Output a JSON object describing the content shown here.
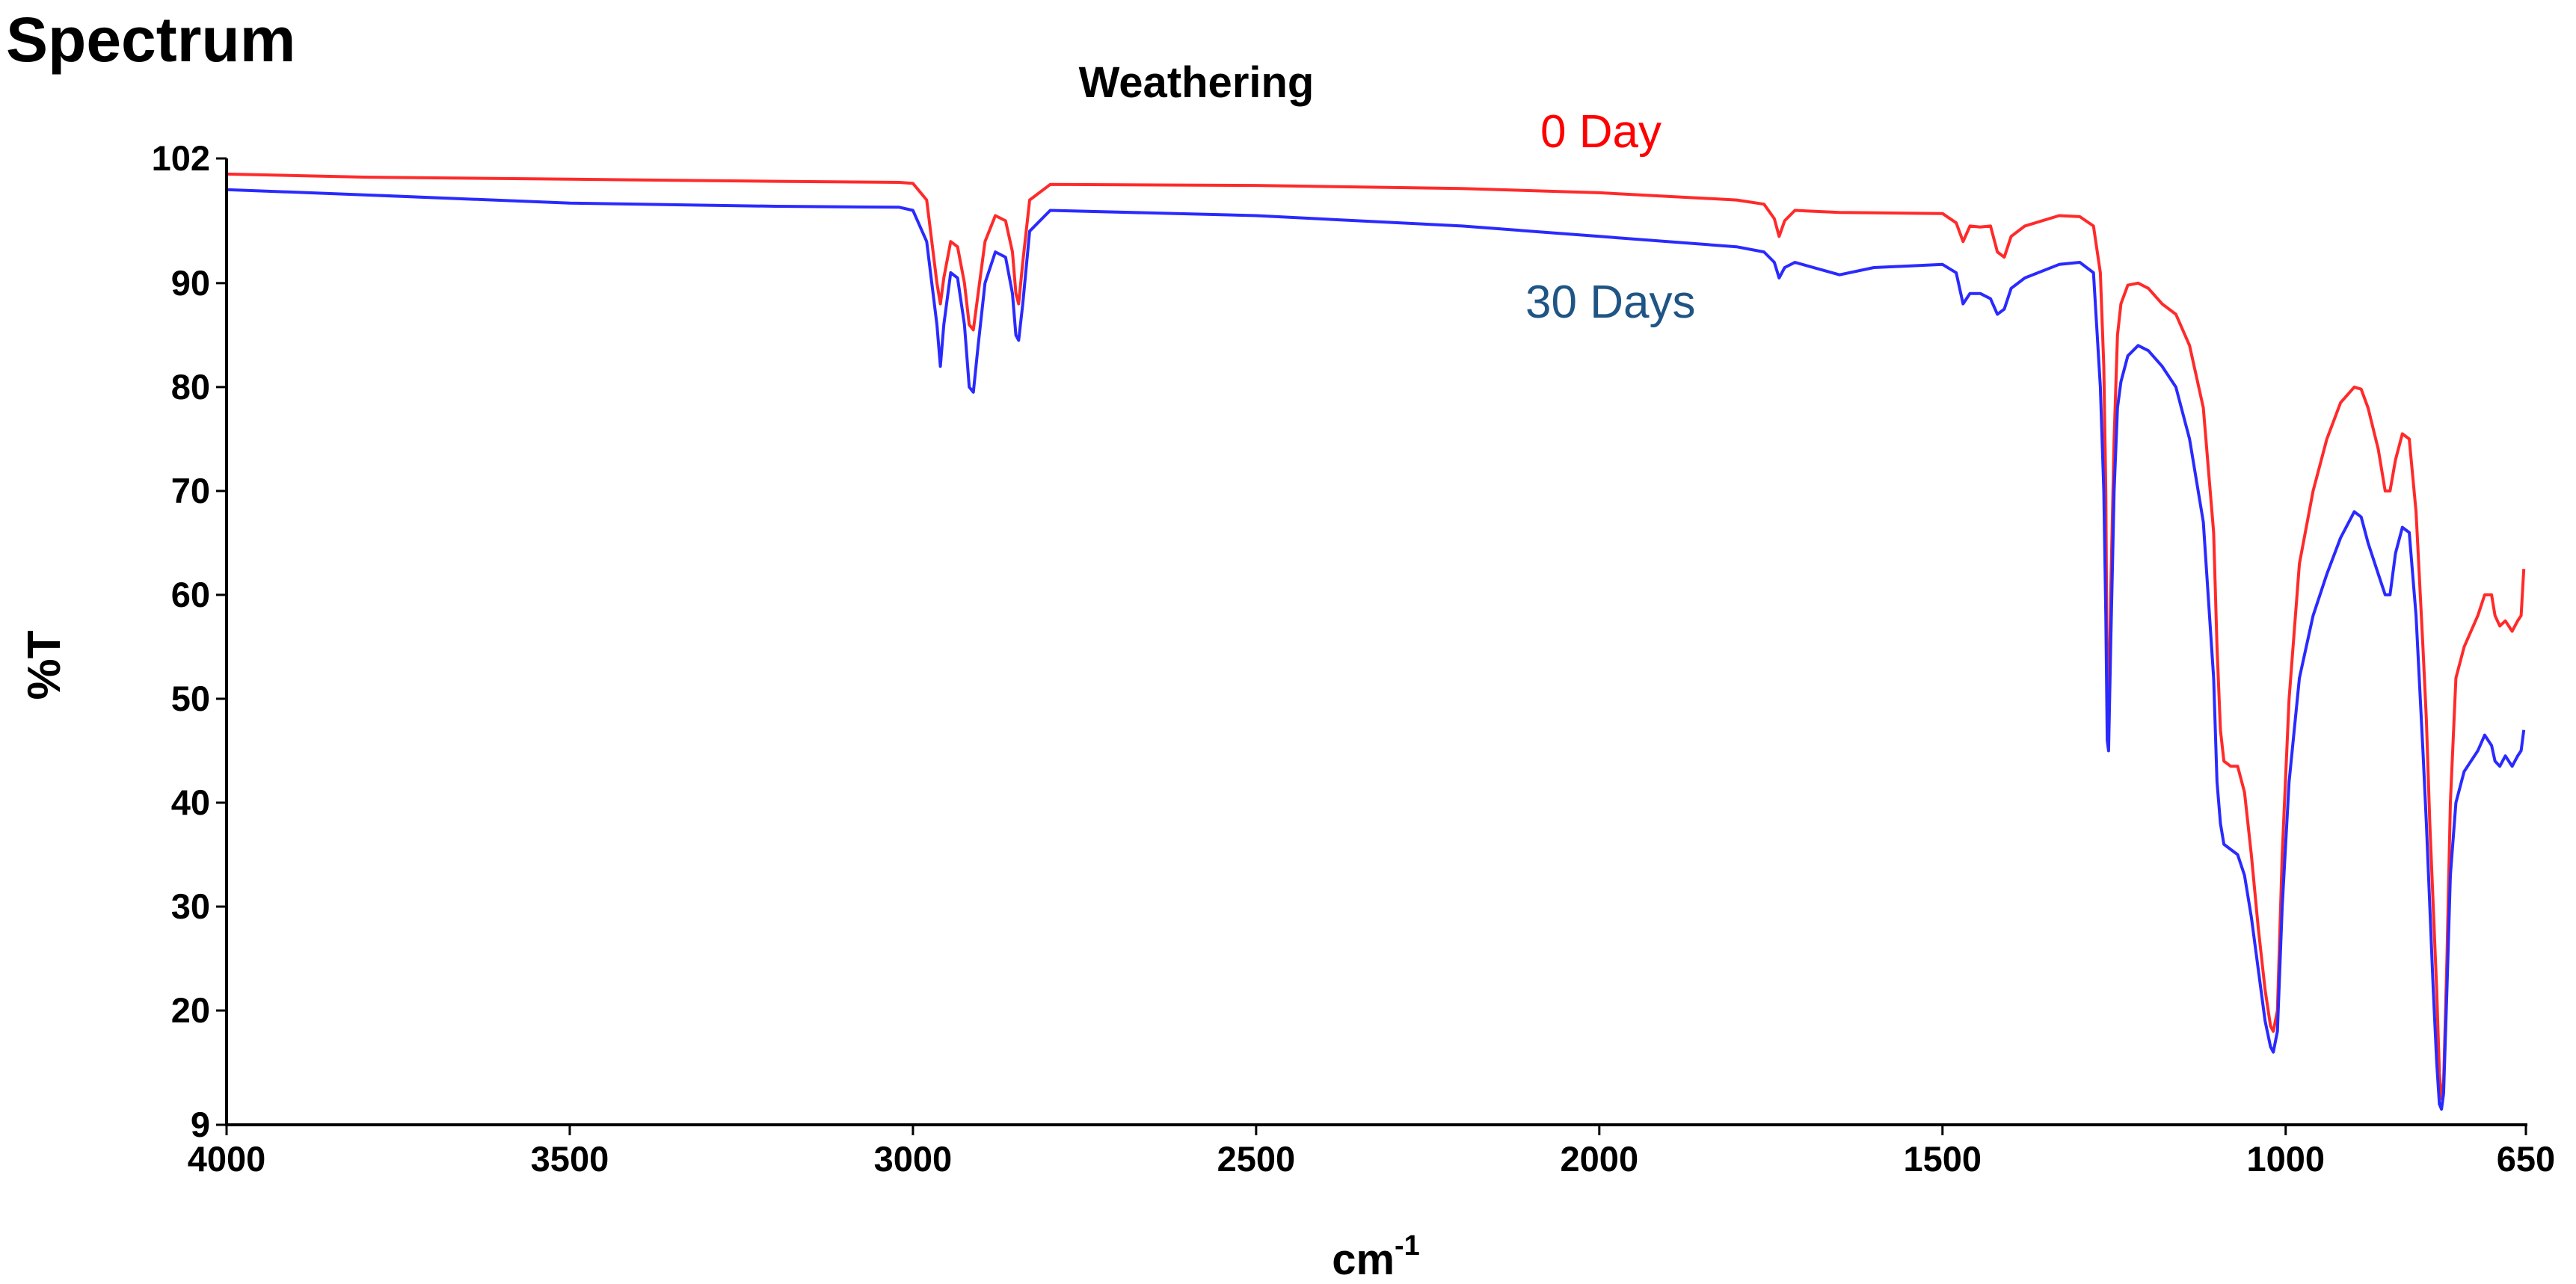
{
  "chart_data": {
    "type": "line",
    "page_title": "Spectrum",
    "title": "Weathering",
    "xlabel": "cm",
    "xlabel_superscript": "-1",
    "ylabel": "%T",
    "xlim": [
      4000,
      650
    ],
    "ylim": [
      9,
      102
    ],
    "x_ticks": [
      4000,
      3500,
      3000,
      2500,
      2000,
      1500,
      1000,
      650
    ],
    "y_ticks": [
      9,
      20,
      30,
      40,
      50,
      60,
      70,
      80,
      90,
      102
    ],
    "grid": false,
    "series": [
      {
        "name": "0 Day",
        "color": "#ff2a2a",
        "label_color": "#ff0000",
        "points": [
          [
            4000,
            100.5
          ],
          [
            3800,
            100.2
          ],
          [
            3500,
            100.0
          ],
          [
            3200,
            99.8
          ],
          [
            3020,
            99.7
          ],
          [
            3000,
            99.6
          ],
          [
            2980,
            98.0
          ],
          [
            2965,
            90.0
          ],
          [
            2960,
            88.0
          ],
          [
            2955,
            90.5
          ],
          [
            2945,
            94.0
          ],
          [
            2935,
            93.5
          ],
          [
            2925,
            90.0
          ],
          [
            2918,
            86.0
          ],
          [
            2912,
            85.5
          ],
          [
            2905,
            89.0
          ],
          [
            2895,
            94.0
          ],
          [
            2880,
            96.5
          ],
          [
            2865,
            96.0
          ],
          [
            2855,
            93.0
          ],
          [
            2850,
            89.0
          ],
          [
            2846,
            88.0
          ],
          [
            2840,
            92.0
          ],
          [
            2830,
            98.0
          ],
          [
            2800,
            99.5
          ],
          [
            2500,
            99.4
          ],
          [
            2200,
            99.1
          ],
          [
            2000,
            98.7
          ],
          [
            1800,
            98.0
          ],
          [
            1760,
            97.6
          ],
          [
            1745,
            96.2
          ],
          [
            1738,
            94.5
          ],
          [
            1730,
            96.0
          ],
          [
            1715,
            97.0
          ],
          [
            1650,
            96.8
          ],
          [
            1500,
            96.7
          ],
          [
            1480,
            95.8
          ],
          [
            1470,
            94.0
          ],
          [
            1460,
            95.5
          ],
          [
            1445,
            95.4
          ],
          [
            1430,
            95.5
          ],
          [
            1420,
            93.0
          ],
          [
            1410,
            92.5
          ],
          [
            1400,
            94.5
          ],
          [
            1380,
            95.5
          ],
          [
            1330,
            96.5
          ],
          [
            1300,
            96.4
          ],
          [
            1280,
            95.5
          ],
          [
            1270,
            91.0
          ],
          [
            1265,
            82.0
          ],
          [
            1262,
            70.0
          ],
          [
            1260,
            50.0
          ],
          [
            1258,
            48.0
          ],
          [
            1255,
            60.0
          ],
          [
            1250,
            75.0
          ],
          [
            1245,
            85.0
          ],
          [
            1240,
            88.0
          ],
          [
            1230,
            89.8
          ],
          [
            1215,
            90.0
          ],
          [
            1200,
            89.5
          ],
          [
            1180,
            88.0
          ],
          [
            1160,
            87.0
          ],
          [
            1140,
            84.0
          ],
          [
            1120,
            78.0
          ],
          [
            1105,
            66.0
          ],
          [
            1100,
            55.0
          ],
          [
            1095,
            47.0
          ],
          [
            1090,
            44.0
          ],
          [
            1080,
            43.5
          ],
          [
            1070,
            43.5
          ],
          [
            1060,
            41.0
          ],
          [
            1050,
            35.0
          ],
          [
            1040,
            28.0
          ],
          [
            1030,
            22.0
          ],
          [
            1022,
            18.5
          ],
          [
            1018,
            18.0
          ],
          [
            1012,
            20.0
          ],
          [
            1005,
            35.0
          ],
          [
            995,
            50.0
          ],
          [
            980,
            63.0
          ],
          [
            960,
            70.0
          ],
          [
            940,
            75.0
          ],
          [
            920,
            78.5
          ],
          [
            900,
            80.0
          ],
          [
            890,
            79.8
          ],
          [
            880,
            78.0
          ],
          [
            865,
            74.0
          ],
          [
            855,
            70.0
          ],
          [
            848,
            70.0
          ],
          [
            840,
            73.0
          ],
          [
            830,
            75.5
          ],
          [
            820,
            75.0
          ],
          [
            810,
            68.0
          ],
          [
            800,
            55.0
          ],
          [
            795,
            48.0
          ],
          [
            790,
            38.0
          ],
          [
            785,
            30.0
          ],
          [
            780,
            22.0
          ],
          [
            776,
            14.0
          ],
          [
            773,
            11.5
          ],
          [
            770,
            13.0
          ],
          [
            765,
            25.0
          ],
          [
            760,
            40.0
          ],
          [
            752,
            52.0
          ],
          [
            740,
            55.0
          ],
          [
            720,
            58.0
          ],
          [
            710,
            60.0
          ],
          [
            700,
            60.0
          ],
          [
            695,
            58.0
          ],
          [
            688,
            57.0
          ],
          [
            680,
            57.5
          ],
          [
            670,
            56.5
          ],
          [
            662,
            57.5
          ],
          [
            657,
            58.0
          ],
          [
            653,
            62.5
          ]
        ]
      },
      {
        "name": "30 Days",
        "color": "#2a2aff",
        "label_color": "#1f5585",
        "points": [
          [
            4000,
            99.0
          ],
          [
            3800,
            98.5
          ],
          [
            3500,
            97.7
          ],
          [
            3200,
            97.4
          ],
          [
            3020,
            97.3
          ],
          [
            3000,
            97.0
          ],
          [
            2980,
            94.0
          ],
          [
            2965,
            86.0
          ],
          [
            2960,
            82.0
          ],
          [
            2955,
            86.0
          ],
          [
            2945,
            91.0
          ],
          [
            2935,
            90.5
          ],
          [
            2925,
            86.0
          ],
          [
            2918,
            80.0
          ],
          [
            2912,
            79.5
          ],
          [
            2905,
            84.0
          ],
          [
            2895,
            90.0
          ],
          [
            2880,
            93.0
          ],
          [
            2865,
            92.5
          ],
          [
            2855,
            89.0
          ],
          [
            2850,
            85.0
          ],
          [
            2846,
            84.5
          ],
          [
            2840,
            88.0
          ],
          [
            2830,
            95.0
          ],
          [
            2800,
            97.0
          ],
          [
            2500,
            96.5
          ],
          [
            2200,
            95.5
          ],
          [
            2000,
            94.5
          ],
          [
            1800,
            93.5
          ],
          [
            1760,
            93.0
          ],
          [
            1745,
            92.0
          ],
          [
            1738,
            90.5
          ],
          [
            1730,
            91.5
          ],
          [
            1715,
            92.0
          ],
          [
            1650,
            90.8
          ],
          [
            1600,
            91.5
          ],
          [
            1500,
            91.8
          ],
          [
            1480,
            91.0
          ],
          [
            1470,
            88.0
          ],
          [
            1460,
            89.0
          ],
          [
            1445,
            89.0
          ],
          [
            1430,
            88.5
          ],
          [
            1420,
            87.0
          ],
          [
            1410,
            87.5
          ],
          [
            1400,
            89.5
          ],
          [
            1380,
            90.5
          ],
          [
            1330,
            91.8
          ],
          [
            1300,
            92.0
          ],
          [
            1280,
            91.0
          ],
          [
            1270,
            80.0
          ],
          [
            1265,
            70.0
          ],
          [
            1262,
            58.0
          ],
          [
            1260,
            46.0
          ],
          [
            1258,
            45.0
          ],
          [
            1255,
            55.0
          ],
          [
            1250,
            70.0
          ],
          [
            1245,
            78.0
          ],
          [
            1240,
            80.5
          ],
          [
            1230,
            83.0
          ],
          [
            1215,
            84.0
          ],
          [
            1200,
            83.5
          ],
          [
            1180,
            82.0
          ],
          [
            1160,
            80.0
          ],
          [
            1140,
            75.0
          ],
          [
            1120,
            67.0
          ],
          [
            1105,
            52.0
          ],
          [
            1100,
            42.0
          ],
          [
            1095,
            38.0
          ],
          [
            1090,
            36.0
          ],
          [
            1080,
            35.5
          ],
          [
            1070,
            35.0
          ],
          [
            1060,
            33.0
          ],
          [
            1050,
            29.0
          ],
          [
            1040,
            24.0
          ],
          [
            1030,
            19.0
          ],
          [
            1022,
            16.5
          ],
          [
            1018,
            16.0
          ],
          [
            1012,
            18.0
          ],
          [
            1005,
            30.0
          ],
          [
            995,
            42.0
          ],
          [
            980,
            52.0
          ],
          [
            960,
            58.0
          ],
          [
            940,
            62.0
          ],
          [
            920,
            65.5
          ],
          [
            900,
            68.0
          ],
          [
            890,
            67.5
          ],
          [
            880,
            65.0
          ],
          [
            865,
            62.0
          ],
          [
            855,
            60.0
          ],
          [
            848,
            60.0
          ],
          [
            840,
            64.0
          ],
          [
            830,
            66.5
          ],
          [
            820,
            66.0
          ],
          [
            810,
            58.0
          ],
          [
            800,
            45.0
          ],
          [
            795,
            38.0
          ],
          [
            790,
            30.0
          ],
          [
            785,
            22.0
          ],
          [
            780,
            15.0
          ],
          [
            776,
            11.0
          ],
          [
            773,
            10.5
          ],
          [
            770,
            12.0
          ],
          [
            765,
            22.0
          ],
          [
            760,
            33.0
          ],
          [
            752,
            40.0
          ],
          [
            740,
            43.0
          ],
          [
            720,
            45.0
          ],
          [
            710,
            46.5
          ],
          [
            700,
            45.5
          ],
          [
            695,
            44.0
          ],
          [
            688,
            43.5
          ],
          [
            680,
            44.5
          ],
          [
            670,
            43.5
          ],
          [
            662,
            44.5
          ],
          [
            657,
            45.0
          ],
          [
            653,
            47.0
          ]
        ]
      }
    ]
  }
}
